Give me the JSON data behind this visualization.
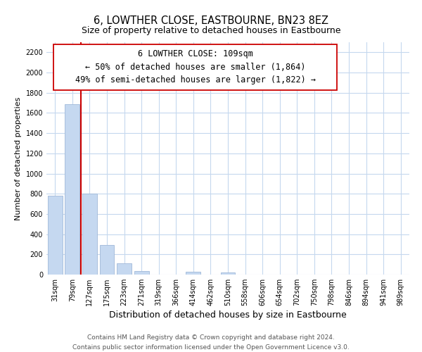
{
  "title": "6, LOWTHER CLOSE, EASTBOURNE, BN23 8EZ",
  "subtitle": "Size of property relative to detached houses in Eastbourne",
  "xlabel": "Distribution of detached houses by size in Eastbourne",
  "ylabel": "Number of detached properties",
  "categories": [
    "31sqm",
    "79sqm",
    "127sqm",
    "175sqm",
    "223sqm",
    "271sqm",
    "319sqm",
    "366sqm",
    "414sqm",
    "462sqm",
    "510sqm",
    "558sqm",
    "606sqm",
    "654sqm",
    "702sqm",
    "750sqm",
    "798sqm",
    "846sqm",
    "894sqm",
    "941sqm",
    "989sqm"
  ],
  "values": [
    780,
    1690,
    800,
    295,
    110,
    35,
    0,
    0,
    30,
    0,
    20,
    0,
    0,
    0,
    0,
    0,
    0,
    0,
    0,
    0,
    0
  ],
  "bar_color": "#c5d8f0",
  "bar_edge_color": "#a0b8d8",
  "vline_color": "#cc0000",
  "vline_pos": 1.5,
  "annotation_line1": "6 LOWTHER CLOSE: 109sqm",
  "annotation_line2": "← 50% of detached houses are smaller (1,864)",
  "annotation_line3": "49% of semi-detached houses are larger (1,822) →",
  "ylim_max": 2300,
  "yticks": [
    0,
    200,
    400,
    600,
    800,
    1000,
    1200,
    1400,
    1600,
    1800,
    2000,
    2200
  ],
  "grid_color": "#c5d8ee",
  "footer_line1": "Contains HM Land Registry data © Crown copyright and database right 2024.",
  "footer_line2": "Contains public sector information licensed under the Open Government Licence v3.0.",
  "title_fontsize": 10.5,
  "xlabel_fontsize": 9,
  "ylabel_fontsize": 8,
  "tick_fontsize": 7,
  "ann_fontsize": 8.5,
  "footer_fontsize": 6.5
}
